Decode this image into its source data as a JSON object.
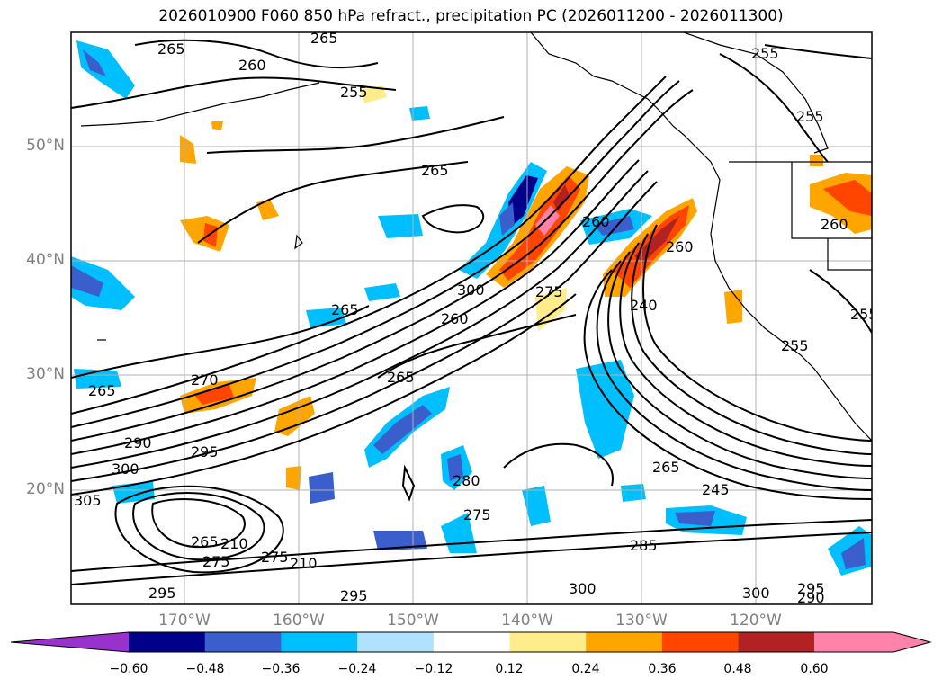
{
  "title": "2026010900 F060 850 hPa refract., precipitation PC (2026011200 - 2026011300)",
  "map": {
    "lat_labels": [
      "50°N",
      "40°N",
      "30°N",
      "20°N"
    ],
    "lon_labels": [
      "170°W",
      "160°W",
      "150°W",
      "140°W",
      "130°W",
      "120°W"
    ],
    "gridlines": true
  },
  "contour_labels": [
    "265",
    "265",
    "260",
    "255",
    "255",
    "255",
    "265",
    "260",
    "300",
    "275",
    "260",
    "265",
    "240",
    "260",
    "265",
    "270",
    "265",
    "290",
    "295",
    "300",
    "305",
    "280",
    "275",
    "265",
    "210",
    "275",
    "275",
    "210",
    "285",
    "265",
    "245",
    "295",
    "295",
    "300",
    "300",
    "295",
    "290",
    "255",
    "260",
    "255"
  ],
  "colorbar": {
    "ticks": [
      "−0.60",
      "−0.48",
      "−0.36",
      "−0.24",
      "−0.12",
      "0.12",
      "0.24",
      "0.36",
      "0.48",
      "0.60"
    ],
    "colors": {
      "below": "#9932cc",
      "c1": "#00008b",
      "c2": "#3a5fcd",
      "c3": "#00bfff",
      "c4": "#b0e2ff",
      "c5": "#ffffff",
      "c6": "#ffec8b",
      "c7": "#ffa500",
      "c8": "#ff4500",
      "c9": "#b22222",
      "above": "#ff82ab"
    }
  }
}
